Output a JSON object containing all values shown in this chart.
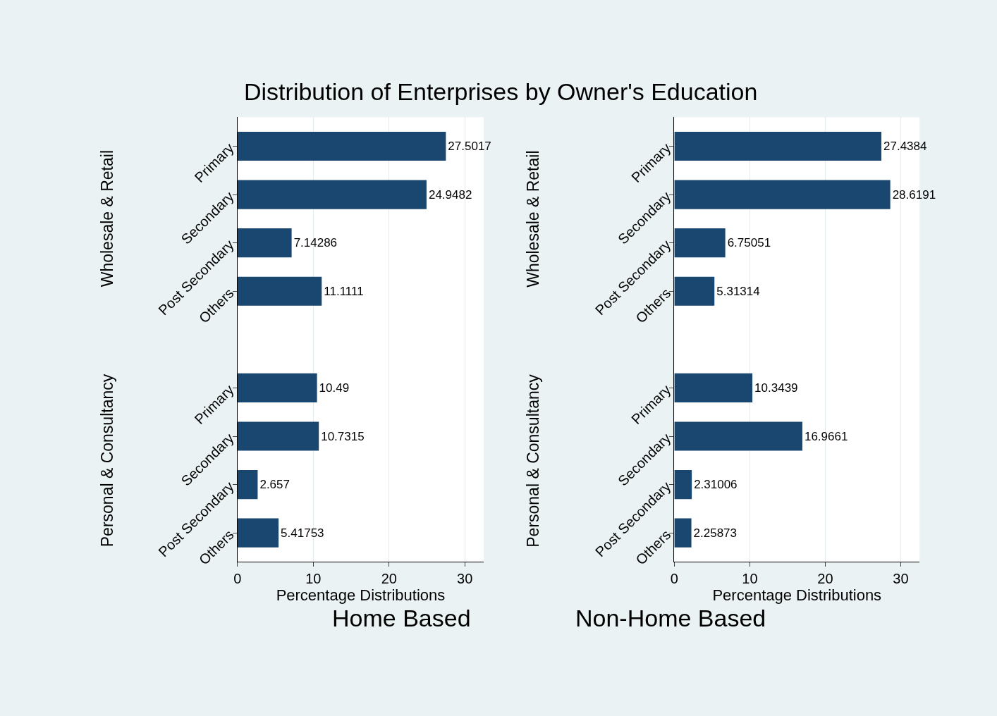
{
  "chart_data": [
    {
      "type": "bar",
      "orientation": "horizontal",
      "title": "Distribution of Enterprises by Owner's Education",
      "subtitle": "Home Based",
      "xlabel": "Percentage Distributions",
      "categories": [
        "Primary",
        "Secondary",
        "Post Secondary",
        "Others",
        null,
        "Primary",
        "Secondary",
        "Post Secondary",
        "Others"
      ],
      "values": [
        27.5017,
        24.9482,
        7.14286,
        11.1111,
        null,
        10.49,
        10.7315,
        2.657,
        5.41753
      ],
      "color": "#1a476f",
      "xlim": [
        0,
        32.5
      ],
      "xticks": [
        0,
        10,
        20,
        30
      ],
      "grid": "x",
      "data_labels": true,
      "annotations": [
        "Wholesale & Retail",
        "Personal & Consultancy"
      ]
    },
    {
      "type": "bar",
      "orientation": "horizontal",
      "subtitle": "Non-Home Based",
      "xlabel": "Percentage Distributions",
      "categories": [
        "Primary",
        "Secondary",
        "Post Secondary",
        "Others",
        null,
        "Primary",
        "Secondary",
        "Post Secondary",
        "Others"
      ],
      "values": [
        27.4384,
        28.6191,
        6.75051,
        5.31314,
        null,
        10.3439,
        16.9661,
        2.31006,
        2.25873
      ],
      "color": "#1a476f",
      "xlim": [
        0,
        32.5
      ],
      "xticks": [
        0,
        10,
        20,
        30
      ],
      "grid": "x",
      "data_labels": true,
      "annotations": [
        "Wholesale & Retail",
        "Personal & Consultancy"
      ]
    }
  ]
}
